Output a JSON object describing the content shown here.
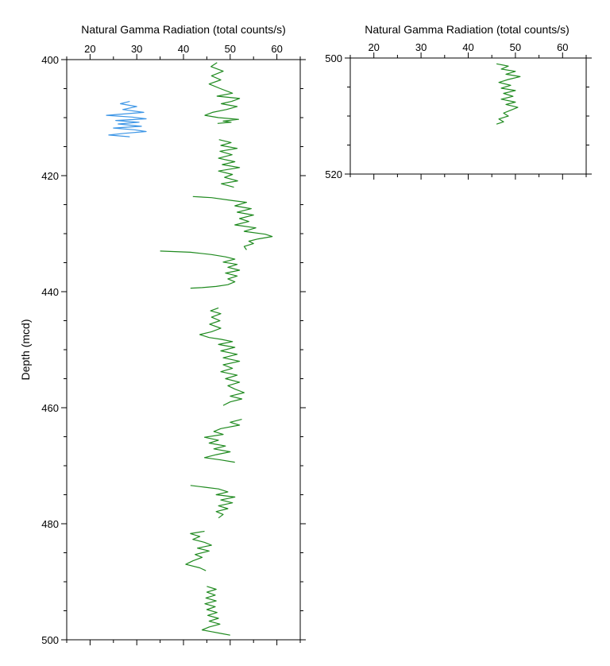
{
  "chart_data": [
    {
      "type": "line",
      "title": "Natural Gamma Radiation (total counts/s)",
      "ylabel": "Depth (mcd)",
      "xlim": [
        15,
        65
      ],
      "ylim": [
        400,
        500
      ],
      "y_inverted": true,
      "x_ticks": [
        20,
        30,
        40,
        50,
        60
      ],
      "y_ticks": [
        400,
        420,
        440,
        460,
        480,
        500
      ],
      "x_tick_labels": [
        "20",
        "30",
        "40",
        "50",
        "60"
      ],
      "y_tick_labels": [
        "400",
        "420",
        "440",
        "460",
        "480",
        "500"
      ],
      "grid": false,
      "series": [
        {
          "color": "#1f8a1f",
          "segments": [
            [
              [
                47.2,
                400.5
              ],
              [
                45.9,
                401.2
              ],
              [
                48.5,
                402.0
              ],
              [
                46.0,
                402.8
              ],
              [
                48.0,
                403.5
              ],
              [
                45.5,
                404.2
              ],
              [
                47.9,
                405.0
              ],
              [
                50.5,
                405.8
              ],
              [
                47.2,
                406.3
              ],
              [
                52.0,
                406.7
              ],
              [
                50.3,
                407.2
              ],
              [
                48.1,
                407.6
              ],
              [
                51.5,
                408.1
              ],
              [
                49.2,
                408.6
              ],
              [
                46.2,
                409.1
              ],
              [
                44.6,
                409.6
              ],
              [
                47.5,
                410.0
              ],
              [
                51.8,
                410.3
              ],
              [
                48.5,
                410.6
              ],
              [
                50.2,
                410.8
              ],
              [
                47.3,
                411.0
              ]
            ],
            [
              [
                47.6,
                413.8
              ],
              [
                50.2,
                414.3
              ],
              [
                48.0,
                414.8
              ],
              [
                51.5,
                415.3
              ],
              [
                47.8,
                415.8
              ],
              [
                50.4,
                416.4
              ],
              [
                47.5,
                417.0
              ],
              [
                51.0,
                417.6
              ],
              [
                48.3,
                418.1
              ],
              [
                52.0,
                418.6
              ],
              [
                47.5,
                419.2
              ],
              [
                50.5,
                419.8
              ],
              [
                48.8,
                420.3
              ],
              [
                51.6,
                420.9
              ],
              [
                48.1,
                421.4
              ],
              [
                50.8,
                422.0
              ]
            ],
            [
              [
                42.0,
                423.6
              ],
              [
                46.0,
                423.8
              ],
              [
                50.5,
                424.3
              ],
              [
                53.5,
                424.6
              ],
              [
                51.0,
                425.2
              ],
              [
                54.5,
                425.7
              ],
              [
                51.5,
                426.3
              ],
              [
                55.0,
                426.8
              ],
              [
                52.0,
                427.4
              ],
              [
                54.0,
                427.9
              ],
              [
                51.0,
                428.5
              ],
              [
                55.5,
                429.0
              ],
              [
                53.0,
                429.6
              ],
              [
                57.5,
                430.1
              ],
              [
                59.0,
                430.5
              ],
              [
                56.0,
                430.9
              ],
              [
                54.0,
                431.3
              ],
              [
                55.0,
                431.7
              ],
              [
                53.0,
                432.2
              ],
              [
                53.5,
                432.8
              ]
            ],
            [
              [
                35.0,
                433.0
              ],
              [
                41.5,
                433.2
              ],
              [
                46.0,
                433.6
              ],
              [
                49.0,
                434.0
              ],
              [
                51.0,
                434.4
              ],
              [
                48.5,
                434.9
              ],
              [
                51.5,
                435.3
              ],
              [
                49.5,
                435.8
              ],
              [
                52.0,
                436.3
              ],
              [
                49.0,
                436.8
              ],
              [
                51.5,
                437.3
              ],
              [
                49.5,
                437.8
              ],
              [
                51.0,
                438.3
              ],
              [
                49.5,
                438.8
              ],
              [
                47.0,
                439.1
              ],
              [
                44.0,
                439.3
              ],
              [
                41.5,
                439.4
              ]
            ],
            [
              [
                47.5,
                442.8
              ],
              [
                45.8,
                443.3
              ],
              [
                48.0,
                443.8
              ],
              [
                46.0,
                444.4
              ],
              [
                47.8,
                445.0
              ],
              [
                45.6,
                445.6
              ],
              [
                48.0,
                446.3
              ],
              [
                46.0,
                446.9
              ],
              [
                43.5,
                447.4
              ],
              [
                45.5,
                447.9
              ],
              [
                48.0,
                448.2
              ],
              [
                50.5,
                448.6
              ],
              [
                47.5,
                449.1
              ],
              [
                51.0,
                449.6
              ],
              [
                48.0,
                450.2
              ],
              [
                51.5,
                450.8
              ],
              [
                48.5,
                451.4
              ],
              [
                52.0,
                452.0
              ],
              [
                48.5,
                452.6
              ],
              [
                50.5,
                453.2
              ],
              [
                48.0,
                453.8
              ],
              [
                51.5,
                454.4
              ],
              [
                49.0,
                455.0
              ],
              [
                52.0,
                455.6
              ],
              [
                49.5,
                456.2
              ],
              [
                51.0,
                456.8
              ],
              [
                53.0,
                457.4
              ],
              [
                50.0,
                458.0
              ],
              [
                52.5,
                458.5
              ],
              [
                50.0,
                459.0
              ],
              [
                48.5,
                459.6
              ]
            ],
            [
              [
                52.5,
                462.0
              ],
              [
                50.0,
                462.5
              ],
              [
                52.0,
                463.0
              ],
              [
                48.0,
                463.6
              ],
              [
                46.5,
                464.1
              ],
              [
                48.5,
                464.6
              ],
              [
                44.5,
                465.1
              ],
              [
                47.5,
                465.6
              ],
              [
                45.5,
                466.1
              ],
              [
                49.0,
                466.6
              ],
              [
                46.5,
                467.1
              ],
              [
                50.0,
                467.6
              ],
              [
                47.0,
                468.1
              ],
              [
                44.5,
                468.6
              ],
              [
                48.0,
                469.0
              ],
              [
                51.0,
                469.4
              ]
            ],
            [
              [
                41.5,
                473.4
              ],
              [
                44.5,
                473.7
              ],
              [
                47.5,
                474.0
              ],
              [
                49.5,
                474.5
              ],
              [
                47.0,
                475.0
              ],
              [
                51.0,
                475.4
              ],
              [
                48.0,
                475.9
              ],
              [
                50.5,
                476.4
              ],
              [
                47.5,
                476.9
              ],
              [
                49.5,
                477.4
              ],
              [
                47.0,
                477.9
              ],
              [
                48.5,
                478.4
              ],
              [
                47.5,
                479.0
              ]
            ],
            [
              [
                44.5,
                481.3
              ],
              [
                41.5,
                481.7
              ],
              [
                43.5,
                482.2
              ],
              [
                42.0,
                482.7
              ],
              [
                44.5,
                483.2
              ],
              [
                46.0,
                483.7
              ],
              [
                43.0,
                484.2
              ],
              [
                45.5,
                484.7
              ],
              [
                42.5,
                485.3
              ],
              [
                44.0,
                485.8
              ],
              [
                42.0,
                486.4
              ],
              [
                40.5,
                487.0
              ],
              [
                43.5,
                487.6
              ],
              [
                44.8,
                488.1
              ]
            ],
            [
              [
                45.0,
                490.8
              ],
              [
                47.0,
                491.3
              ],
              [
                45.0,
                491.8
              ],
              [
                46.8,
                492.3
              ],
              [
                44.8,
                492.8
              ],
              [
                47.0,
                493.3
              ],
              [
                44.6,
                493.8
              ],
              [
                46.8,
                494.3
              ],
              [
                45.0,
                494.8
              ],
              [
                47.2,
                495.3
              ],
              [
                45.2,
                495.8
              ],
              [
                47.5,
                496.3
              ],
              [
                45.5,
                496.8
              ],
              [
                47.8,
                497.3
              ],
              [
                45.5,
                497.8
              ],
              [
                44.0,
                498.3
              ],
              [
                46.0,
                498.6
              ],
              [
                48.0,
                498.9
              ],
              [
                50.0,
                499.2
              ]
            ]
          ]
        },
        {
          "color": "#3d96e6",
          "segments": [
            [
              [
                28.5,
                407.2
              ],
              [
                26.5,
                407.6
              ],
              [
                30.0,
                408.1
              ],
              [
                27.0,
                408.6
              ],
              [
                31.5,
                409.1
              ],
              [
                23.5,
                409.6
              ],
              [
                29.0,
                409.9
              ],
              [
                32.0,
                410.2
              ],
              [
                25.5,
                410.5
              ],
              [
                30.5,
                410.8
              ],
              [
                26.0,
                411.1
              ],
              [
                31.0,
                411.5
              ],
              [
                25.0,
                411.8
              ],
              [
                29.5,
                412.1
              ],
              [
                32.0,
                412.4
              ],
              [
                27.5,
                412.7
              ],
              [
                24.0,
                413.0
              ],
              [
                28.5,
                413.3
              ]
            ]
          ]
        }
      ]
    },
    {
      "type": "line",
      "title": "Natural Gamma Radiation (total counts/s)",
      "xlim": [
        15,
        65
      ],
      "ylim": [
        500,
        520
      ],
      "y_inverted": true,
      "x_ticks": [
        20,
        30,
        40,
        50,
        60
      ],
      "y_ticks": [
        500,
        520
      ],
      "x_tick_labels": [
        "20",
        "30",
        "40",
        "50",
        "60"
      ],
      "y_tick_labels": [
        "500",
        "520"
      ],
      "grid": false,
      "series": [
        {
          "color": "#1f8a1f",
          "segments": [
            [
              [
                46.0,
                501.0
              ],
              [
                48.5,
                501.4
              ],
              [
                47.0,
                501.9
              ],
              [
                50.0,
                502.3
              ],
              [
                48.0,
                502.8
              ],
              [
                51.0,
                503.2
              ],
              [
                48.5,
                503.7
              ],
              [
                46.5,
                504.2
              ],
              [
                49.0,
                504.7
              ],
              [
                47.0,
                505.2
              ],
              [
                50.0,
                505.6
              ],
              [
                47.5,
                506.1
              ],
              [
                49.5,
                506.6
              ],
              [
                47.0,
                507.1
              ],
              [
                50.0,
                507.6
              ],
              [
                48.0,
                508.0
              ],
              [
                50.5,
                508.5
              ],
              [
                49.0,
                509.0
              ],
              [
                47.5,
                509.5
              ],
              [
                48.5,
                510.0
              ],
              [
                46.5,
                510.5
              ],
              [
                47.5,
                511.0
              ],
              [
                46.0,
                511.4
              ]
            ]
          ]
        }
      ]
    }
  ]
}
